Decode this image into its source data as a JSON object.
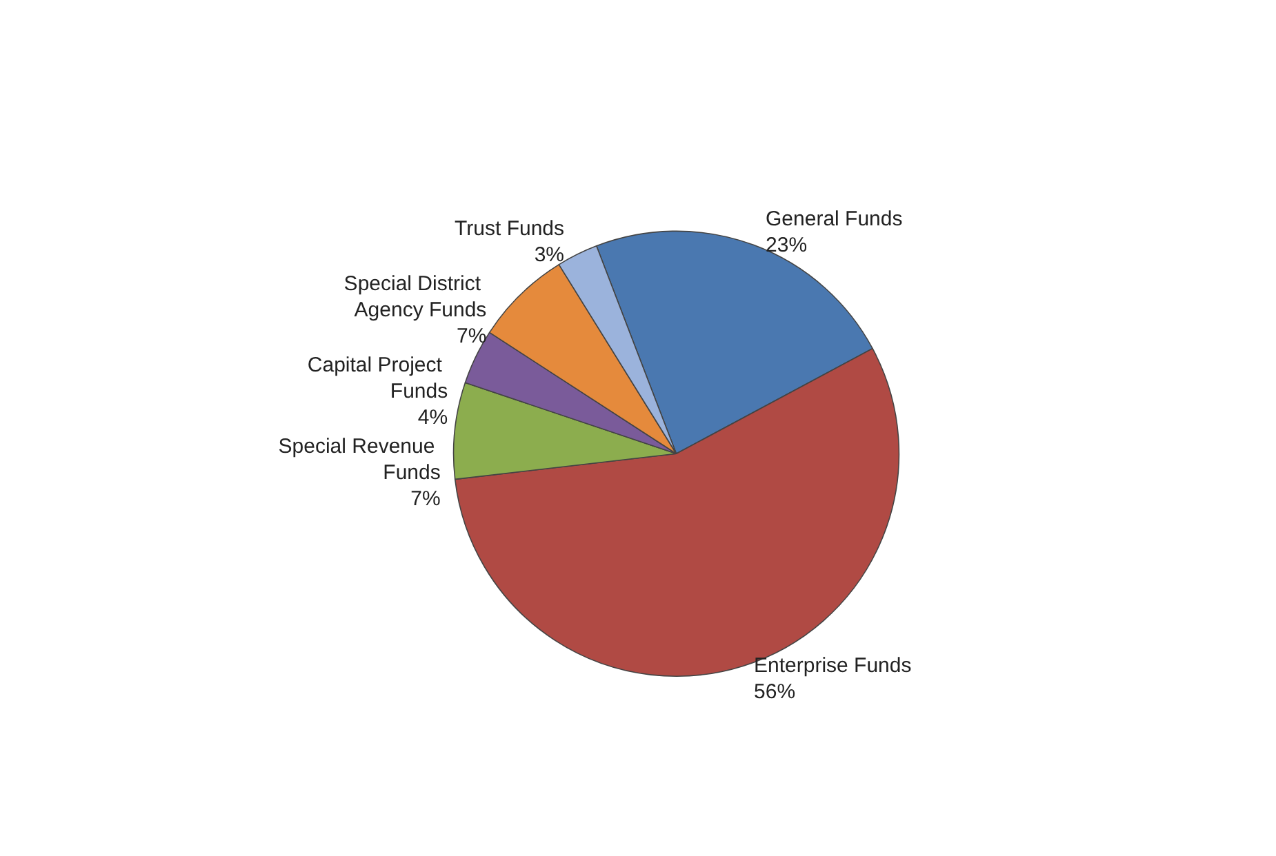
{
  "chart_data": {
    "type": "pie",
    "categories": [
      "General Funds",
      "Enterprise Funds",
      "Special Revenue Funds",
      "Capital Project Funds",
      "Special District Agency Funds",
      "Trust Funds"
    ],
    "values": [
      23,
      56,
      7,
      4,
      7,
      3
    ],
    "value_labels": [
      "23%",
      "56%",
      "7%",
      "4%",
      "7%",
      "3%"
    ],
    "colors": [
      "#4a78b0",
      "#b04a44",
      "#8cad4e",
      "#7a5b9a",
      "#e58a3c",
      "#9bb3dc"
    ],
    "legend": false
  }
}
